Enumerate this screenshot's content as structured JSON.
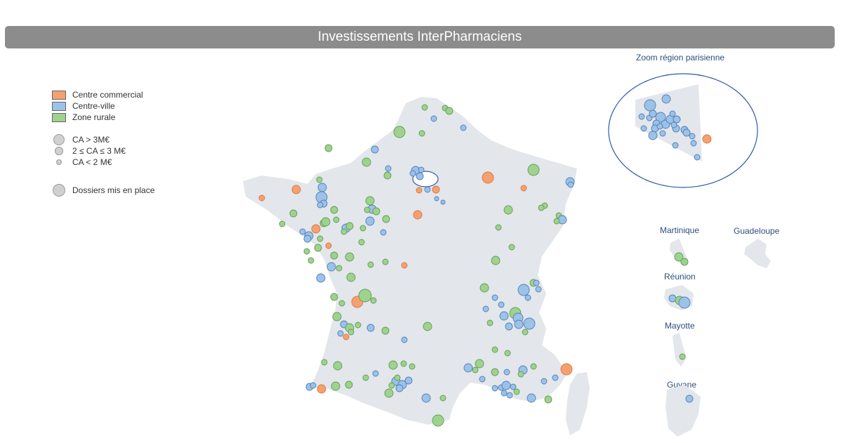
{
  "title": "Investissements InterPharmaciens",
  "legend": {
    "types": [
      {
        "label": "Centre commercial",
        "color": "#f4a16f"
      },
      {
        "label": "Centre-ville",
        "color": "#9cc2e8"
      },
      {
        "label": "Zone rurale",
        "color": "#9fd18f"
      }
    ],
    "sizes": [
      {
        "label": "CA > 3M€"
      },
      {
        "label": "2 ≤ CA ≤ 3 M€"
      },
      {
        "label": "CA < 2 M€"
      }
    ],
    "dossiers_label": "Dossiers mis en place"
  },
  "zoom_title": "Zoom région parisienne",
  "dom_labels": {
    "martinique": "Martinique",
    "guadeloupe": "Guadeloupe",
    "reunion": "Réunion",
    "mayotte": "Mayotte",
    "guyane": "Guyane"
  },
  "colors": {
    "centre_commercial": "#f4a16f",
    "centre_ville": "#9cc2e8",
    "zone_rurale": "#9fd18f",
    "map_fill": "#e3e6eb",
    "title_bar": "#8c8c8c",
    "zoom_outline": "#2e5aa8"
  }
}
